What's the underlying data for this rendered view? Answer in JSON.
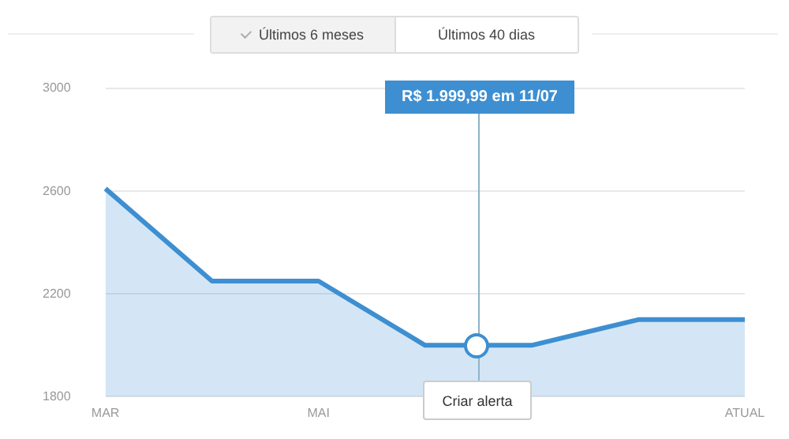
{
  "chart_data": {
    "type": "area",
    "categories": [
      "MAR",
      null,
      "MAI",
      null,
      null,
      null,
      "ATUAL"
    ],
    "series": [
      {
        "color": "#3d8fd1",
        "values": [
          2610,
          2250,
          2250,
          2000,
          2000,
          2100,
          2100
        ]
      }
    ],
    "ylim": [
      1800,
      3000
    ],
    "yticks": [
      1800,
      2200,
      2600,
      3000
    ],
    "grid": "y",
    "legend": false,
    "marker": "none",
    "line_style": "solid",
    "annotations": [
      "Últimos 6 meses",
      "Últimos 40 dias",
      "R$ 1.999,99 em 11/07",
      "Criar alerta"
    ]
  }
}
